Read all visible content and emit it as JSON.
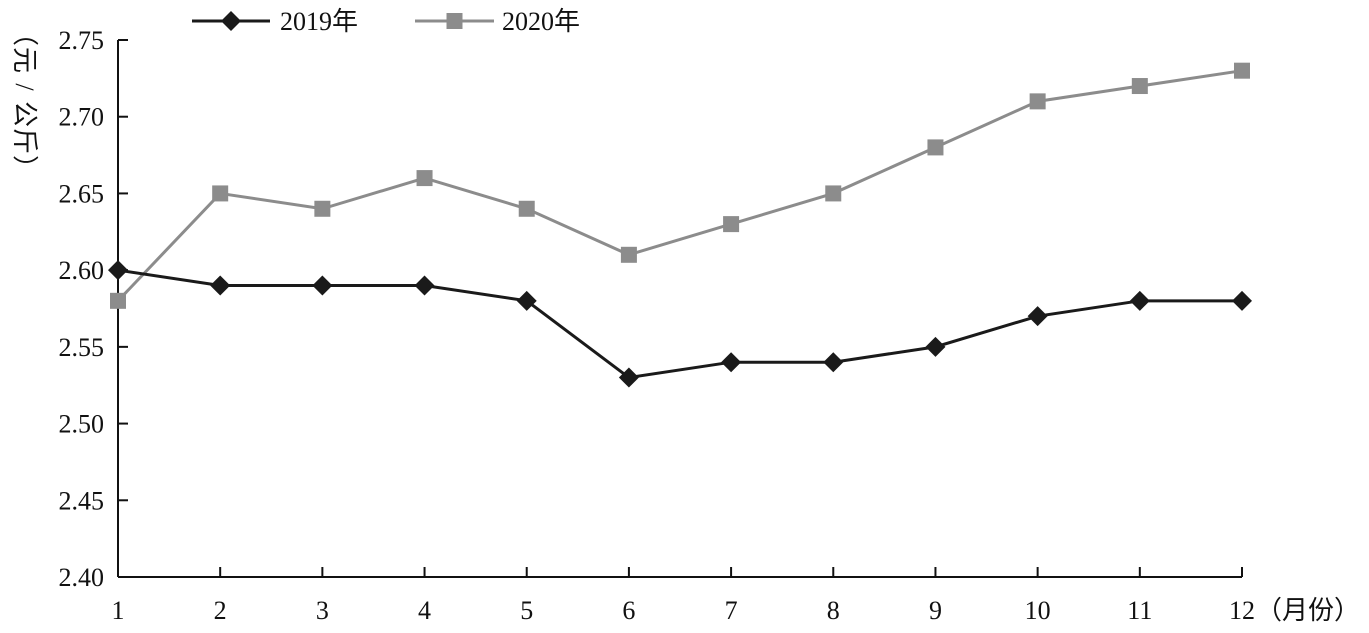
{
  "chart_data": {
    "type": "line",
    "categories": [
      "1",
      "2",
      "3",
      "4",
      "5",
      "6",
      "7",
      "8",
      "9",
      "10",
      "11",
      "12"
    ],
    "x_unit_label": "（月份）",
    "ylabel": "（元/公斤）",
    "ylim": [
      2.4,
      2.75
    ],
    "yticks": [
      "2.40",
      "2.45",
      "2.50",
      "2.55",
      "2.60",
      "2.65",
      "2.70",
      "2.75"
    ],
    "grid": false,
    "legend_position": "top-left",
    "series": [
      {
        "name": "2019年",
        "color": "#1a1a1a",
        "marker": "diamond",
        "values": [
          2.6,
          2.59,
          2.59,
          2.59,
          2.58,
          2.53,
          2.54,
          2.54,
          2.55,
          2.57,
          2.58,
          2.58
        ]
      },
      {
        "name": "2020年",
        "color": "#8c8c8c",
        "marker": "square",
        "values": [
          2.58,
          2.65,
          2.64,
          2.66,
          2.64,
          2.61,
          2.63,
          2.65,
          2.68,
          2.71,
          2.72,
          2.73
        ]
      }
    ]
  }
}
